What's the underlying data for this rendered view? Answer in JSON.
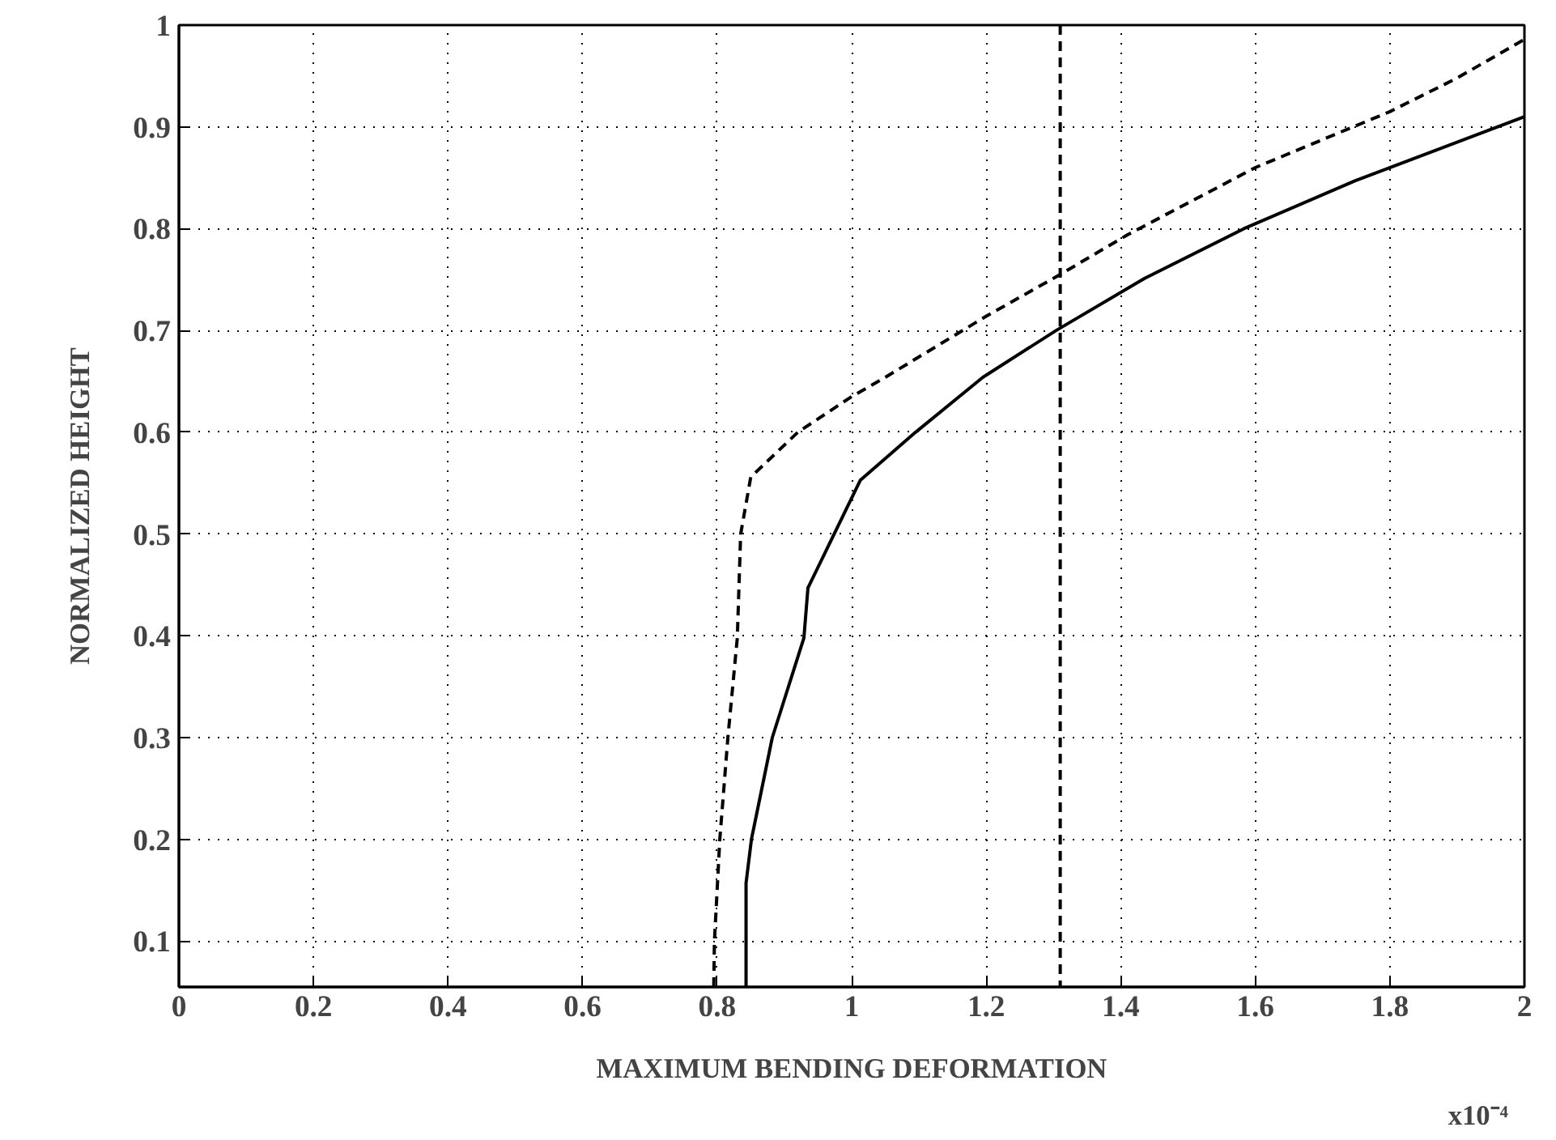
{
  "chart_data": {
    "type": "line",
    "xlabel": "MAXIMUM BENDING DEFORMATION",
    "ylabel": "NORMALIZED HEIGHT",
    "annotations": [
      "x10⁻⁴"
    ],
    "series": [
      {
        "color": "#000000",
        "line_style": "solid",
        "x": [
          0.843,
          0.843,
          0.851,
          0.882,
          0.929,
          0.935,
          1.013,
          1.095,
          1.195,
          1.304,
          1.435,
          1.583,
          1.748,
          2.0
        ],
        "values": [
          0.055,
          0.157,
          0.2,
          0.3,
          0.398,
          0.447,
          0.553,
          0.6,
          0.654,
          0.7,
          0.751,
          0.8,
          0.847,
          0.91
        ]
      },
      {
        "color": "#000000",
        "line_style": "dashed",
        "x": [
          0.795,
          0.796,
          0.804,
          0.816,
          0.83,
          0.835,
          0.85,
          0.92,
          1.0,
          1.05,
          1.2,
          1.31,
          1.41,
          1.6,
          1.8,
          1.9,
          2.0
        ],
        "values": [
          0.055,
          0.1,
          0.2,
          0.3,
          0.398,
          0.5,
          0.556,
          0.6,
          0.635,
          0.654,
          0.714,
          0.755,
          0.794,
          0.86,
          0.915,
          0.948,
          0.986
        ]
      }
    ],
    "ref_lines": [
      {
        "axis": "x",
        "value": 1.31,
        "color": "#000000",
        "line_style": "dashed"
      }
    ],
    "xlim": [
      0,
      2
    ],
    "ylim": [
      0.055,
      1
    ],
    "xticks": [
      0,
      0.2,
      0.4,
      0.6,
      0.8,
      1,
      1.2,
      1.4,
      1.6,
      1.8,
      2
    ],
    "yticks": [
      0.1,
      0.2,
      0.3,
      0.4,
      0.5,
      0.6,
      0.7,
      0.8,
      0.9,
      1
    ],
    "grid": true
  }
}
